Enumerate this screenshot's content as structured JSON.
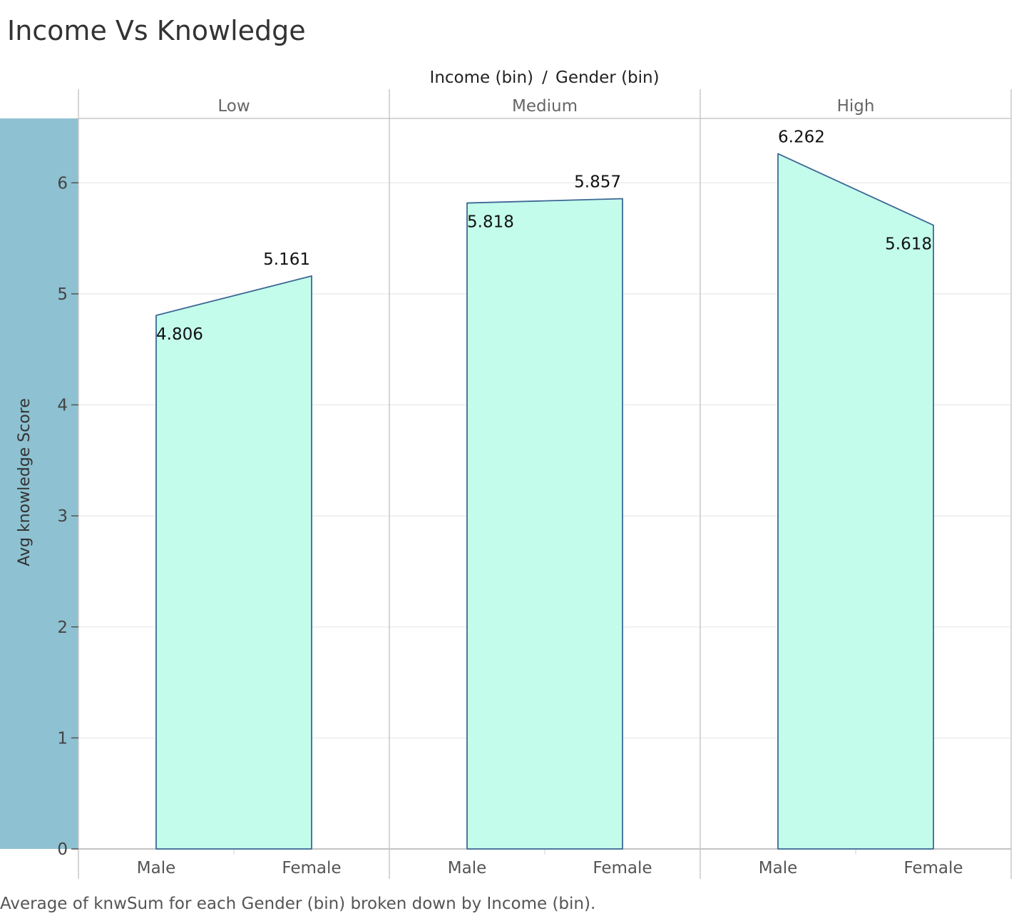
{
  "title": "Income Vs Knowledge",
  "caption": "Average of knwSum for each Gender (bin) broken down by Income (bin).",
  "colors": {
    "fill": "#c4fcec",
    "stroke": "#3c6894",
    "axis_band": "#8ec1d1",
    "grid": "#ececec",
    "divider": "#c8c8c8"
  },
  "chart_data": {
    "type": "area",
    "column_header": {
      "income_label": "Income (bin)",
      "separator": "/",
      "gender_label": "Gender (bin)"
    },
    "panes": [
      "Low",
      "Medium",
      "High"
    ],
    "categories": [
      "Male",
      "Female"
    ],
    "series": [
      {
        "pane": "Low",
        "values": [
          4.806,
          5.161
        ],
        "labels": [
          "4.806",
          "5.161"
        ]
      },
      {
        "pane": "Medium",
        "values": [
          5.818,
          5.857
        ],
        "labels": [
          "5.818",
          "5.857"
        ]
      },
      {
        "pane": "High",
        "values": [
          6.262,
          5.618
        ],
        "labels": [
          "6.262",
          "5.618"
        ]
      }
    ],
    "ylabel": "Avg knowledge Score",
    "ylim": [
      0,
      6.58
    ],
    "yticks": [
      0,
      1,
      2,
      3,
      4,
      5,
      6
    ],
    "grid": true,
    "legend": "none"
  }
}
